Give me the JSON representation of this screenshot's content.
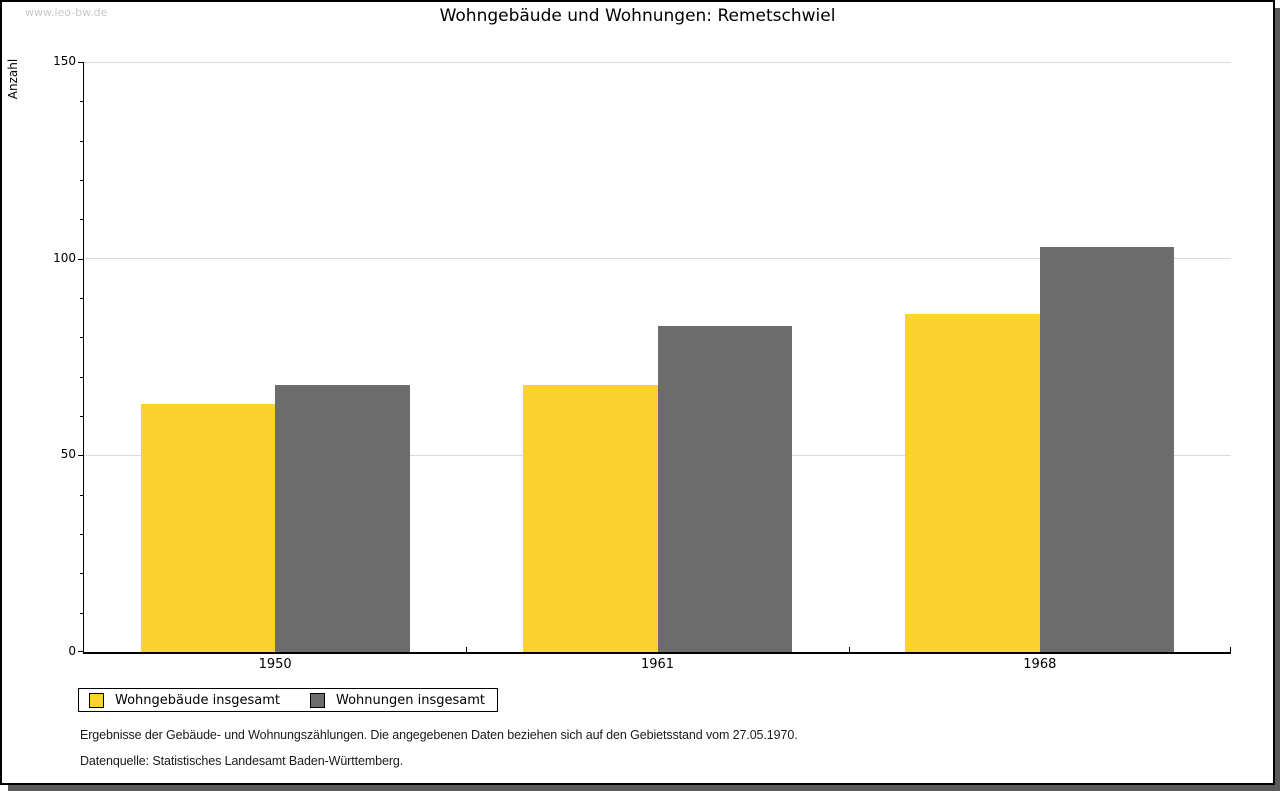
{
  "window": {
    "watermark": "www.leo-bw.de"
  },
  "chart_data": {
    "type": "bar",
    "title": "Wohngebäude und Wohnungen: Remetschwiel",
    "xlabel": "",
    "ylabel": "Anzahl",
    "categories": [
      "1950",
      "1961",
      "1968"
    ],
    "series": [
      {
        "name": "Wohngebäude insgesamt",
        "color": "#FCD32E",
        "values": [
          63,
          68,
          86
        ]
      },
      {
        "name": "Wohnungen insgesamt",
        "color": "#6C6C6C",
        "values": [
          68,
          83,
          103
        ]
      }
    ],
    "ylim": [
      0,
      150
    ],
    "yticks": [
      0,
      50,
      100,
      150
    ],
    "minor_tick_step": 10,
    "grid": true,
    "legend_position": "bottom-left"
  },
  "footnotes": [
    "Ergebnisse der Gebäude- und Wohnungszählungen. Die angegebenen Daten beziehen sich auf den Gebietsstand vom 27.05.1970.",
    "Datenquelle: Statistisches Landesamt Baden-Württemberg."
  ],
  "colors": {
    "gridline": "#DADADA",
    "axis": "#000000",
    "watermark": "#C8C8C8",
    "shadow": "#5A5A5A",
    "footnote_text": "#1A1A1A"
  }
}
